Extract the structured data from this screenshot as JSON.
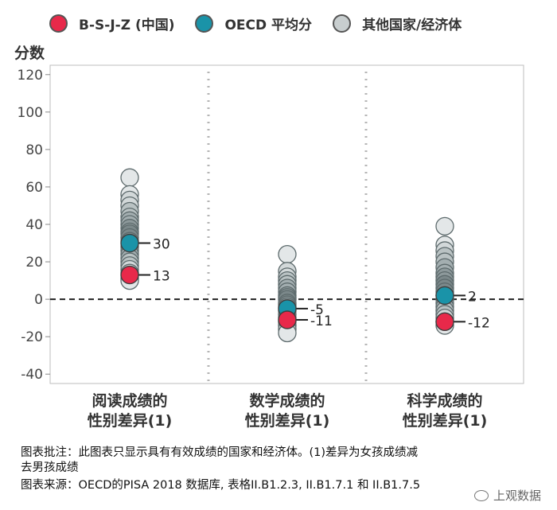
{
  "chart_data": {
    "type": "scatter",
    "ylabel": "分数",
    "ylim": [
      -45,
      125
    ],
    "yticks": [
      120,
      100,
      80,
      60,
      40,
      20,
      0,
      -20,
      -40
    ],
    "legend": [
      {
        "name": "B-S-J-Z (中国)",
        "color": "#e8294a"
      },
      {
        "name": "OECD 平均分",
        "color": "#1a93a8"
      },
      {
        "name": "其他国家/经济体",
        "color": "#c8cecf"
      }
    ],
    "categories": [
      {
        "line1": "阅读成绩的",
        "line2": "性别差异(1)"
      },
      {
        "line1": "数学成绩的",
        "line2": "性别差异(1)"
      },
      {
        "line1": "科学成绩的",
        "line2": "性别差异(1)"
      }
    ],
    "series": [
      {
        "name": "B-S-J-Z (中国)",
        "values": [
          13,
          -11,
          -12
        ],
        "labels": [
          "13",
          "-11",
          "-12"
        ]
      },
      {
        "name": "OECD 平均分",
        "values": [
          30,
          -5,
          2
        ],
        "labels": [
          "30",
          "-5",
          "2"
        ]
      },
      {
        "name": "其他国家/经济体",
        "values": [
          [
            65,
            56,
            53,
            50,
            47,
            44,
            42,
            40,
            38,
            36,
            35,
            33,
            31,
            28,
            26,
            24,
            22,
            20,
            18,
            16,
            14,
            11,
            10
          ],
          [
            24,
            15,
            12,
            10,
            8,
            6,
            4,
            2,
            1,
            0,
            -2,
            -3,
            -4,
            -6,
            -8,
            -10,
            -12,
            -14,
            -16,
            -18
          ],
          [
            39,
            29,
            26,
            23,
            20,
            17,
            14,
            12,
            10,
            8,
            6,
            4,
            2,
            0,
            -2,
            -4,
            -6,
            -8,
            -10,
            -12,
            -14
          ]
        ]
      }
    ]
  },
  "footnote": {
    "line1": "图表批注：此图表只显示具有有效成绩的国家和经济体。(1)差异为女孩成绩减",
    "line2": "去男孩成绩",
    "line3": "图表来源：OECD的PISA 2018 数据库, 表格II.B1.2.3, II.B1.7.1 和 II.B1.7.5"
  },
  "watermark": "上观数据"
}
